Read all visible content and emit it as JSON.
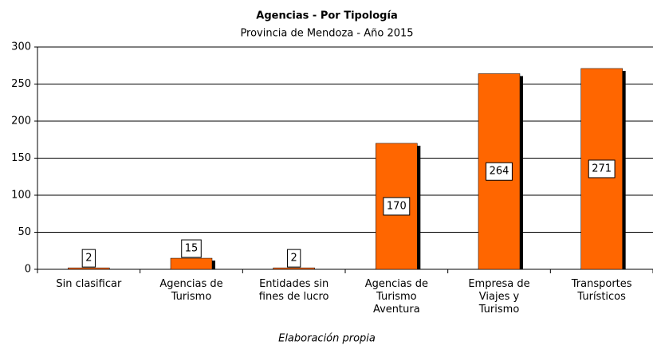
{
  "chart_data": {
    "type": "bar",
    "title": "Agencias - Por Tipología",
    "subtitle": "Provincia de Mendoza - Año 2015",
    "footnote": "Elaboración propia",
    "categories": [
      "Sin clasificar",
      "Agencias de\nTurismo",
      "Entidades sin\nfines de lucro",
      "Agencias de\nTurismo\nAventura",
      "Empresa de\nViajes y\nTurismo",
      "Transportes\nTurísticos"
    ],
    "values": [
      2,
      15,
      2,
      170,
      264,
      271
    ],
    "color": "#ff6600",
    "ylim": [
      0,
      300
    ],
    "yticks": [
      0,
      50,
      100,
      150,
      200,
      250,
      300
    ],
    "grid": true
  }
}
